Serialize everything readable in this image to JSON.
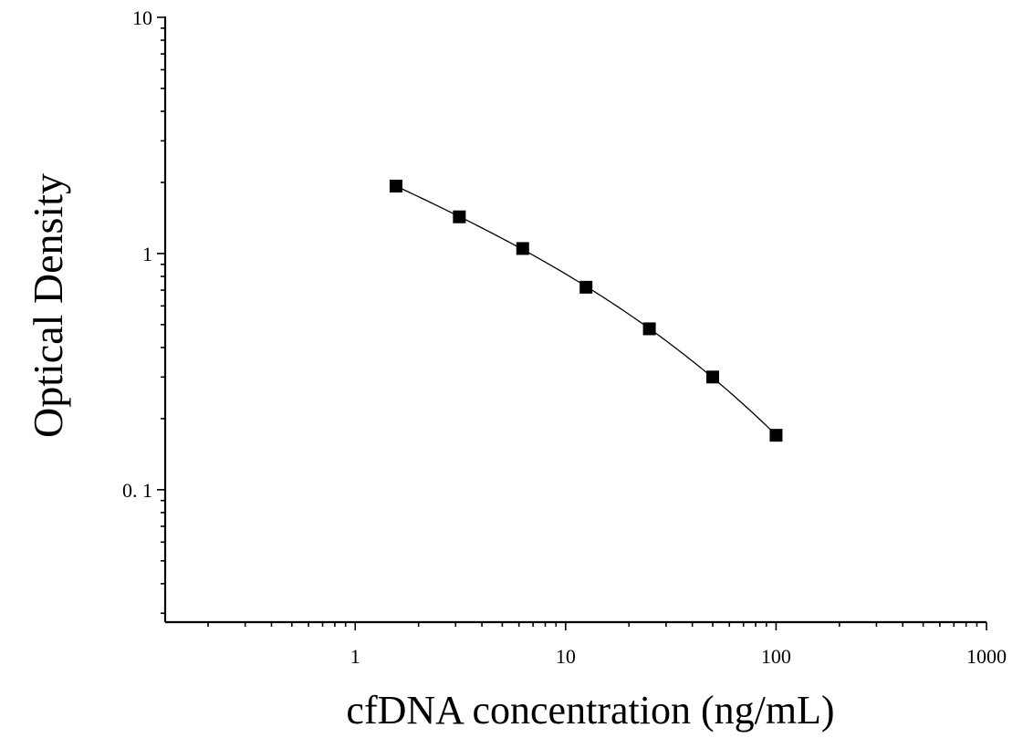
{
  "chart_data": {
    "type": "scatter",
    "xlabel": "cfDNA concentration (ng/mL)",
    "ylabel": "Optical Density",
    "x_scale": "log",
    "y_scale": "log",
    "xlim": [
      0.125,
      1000
    ],
    "ylim": [
      0.0275,
      10
    ],
    "x_ticks": [
      1,
      10,
      100,
      1000
    ],
    "x_tick_labels": [
      "1",
      "10",
      "100",
      "1000"
    ],
    "y_ticks": [
      0.1,
      1,
      10
    ],
    "y_tick_labels": [
      "0. 1",
      "1",
      "10"
    ],
    "grid": false,
    "fit_curve": true,
    "series": [
      {
        "x": [
          1.5625,
          3.125,
          6.25,
          12.5,
          25,
          50,
          100
        ],
        "y": [
          1.93,
          1.43,
          1.05,
          0.72,
          0.48,
          0.3,
          0.17
        ]
      }
    ],
    "colors": {
      "marker": "#000000",
      "line": "#000000",
      "axis": "#000000"
    }
  }
}
